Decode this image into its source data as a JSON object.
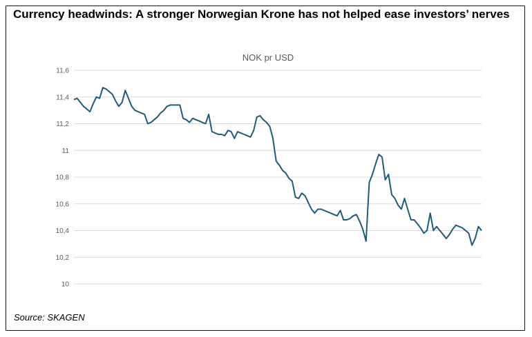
{
  "headline": "Currency headwinds: A stronger Norwegian Krone has not helped ease investors’ nerves",
  "source": "Source: SKAGEN",
  "chart_data": {
    "type": "line",
    "title": "NOK pr USD",
    "xlabel": "",
    "ylabel": "",
    "ylim": [
      10,
      11.6
    ],
    "yticks": [
      10,
      10.2,
      10.4,
      10.6,
      10.8,
      11,
      11.2,
      11.4,
      11.6
    ],
    "ytick_labels": [
      "10",
      "10,2",
      "10,4",
      "10,6",
      "10,8",
      "11",
      "11,2",
      "11,4",
      "11,6"
    ],
    "grid": true,
    "line_color": "#1f5a78",
    "grid_color": "#d9d9d9",
    "series": [
      {
        "values": [
          11.38,
          11.39,
          11.36,
          11.33,
          11.31,
          11.29,
          11.35,
          11.4,
          11.39,
          11.47,
          11.46,
          11.44,
          11.42,
          11.37,
          11.33,
          11.36,
          11.45,
          11.39,
          11.33,
          11.3,
          11.29,
          11.28,
          11.27,
          11.2,
          11.21,
          11.23,
          11.25,
          11.28,
          11.3,
          11.33,
          11.34,
          11.34,
          11.34,
          11.34,
          11.24,
          11.23,
          11.21,
          11.24,
          11.23,
          11.22,
          11.21,
          11.2,
          11.27,
          11.14,
          11.13,
          11.12,
          11.12,
          11.11,
          11.15,
          11.14,
          11.09,
          11.14,
          11.13,
          11.12,
          11.11,
          11.1,
          11.15,
          11.25,
          11.26,
          11.23,
          11.21,
          11.18,
          11.09,
          10.92,
          10.89,
          10.85,
          10.83,
          10.79,
          10.77,
          10.65,
          10.64,
          10.68,
          10.66,
          10.61,
          10.56,
          10.53,
          10.56,
          10.56,
          10.55,
          10.54,
          10.53,
          10.52,
          10.51,
          10.55,
          10.48,
          10.48,
          10.49,
          10.51,
          10.52,
          10.47,
          10.41,
          10.32,
          10.76,
          10.82,
          10.9,
          10.97,
          10.95,
          10.78,
          10.82,
          10.67,
          10.64,
          10.59,
          10.56,
          10.64,
          10.56,
          10.48,
          10.48,
          10.45,
          10.42,
          10.38,
          10.4,
          10.53,
          10.4,
          10.43,
          10.4,
          10.37,
          10.34,
          10.37,
          10.41,
          10.44,
          10.43,
          10.42,
          10.4,
          10.38,
          10.29,
          10.34,
          10.43,
          10.4
        ]
      }
    ]
  }
}
